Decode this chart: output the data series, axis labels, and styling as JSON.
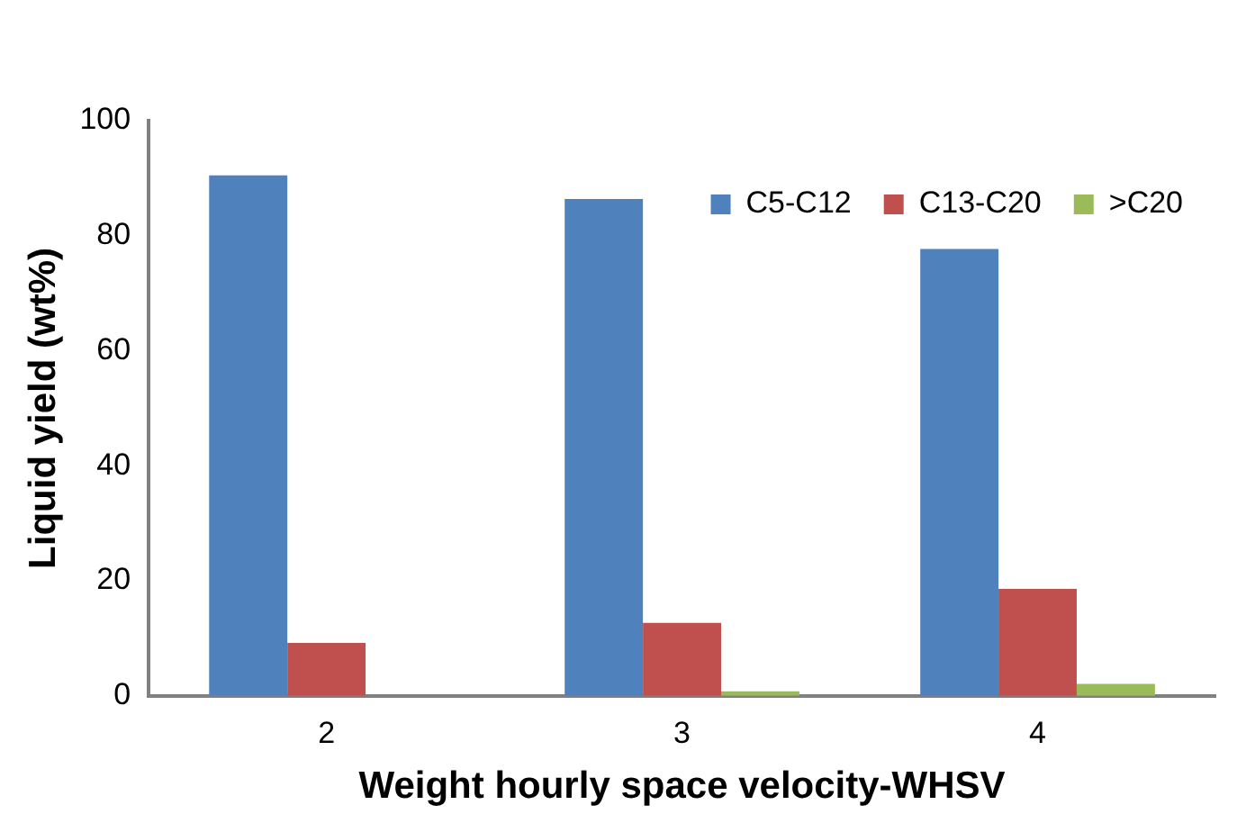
{
  "chart_data": {
    "type": "bar",
    "xlabel": "Weight hourly space velocity-WHSV",
    "ylabel": "Liquid yield (wt%)",
    "categories": [
      "2",
      "3",
      "4"
    ],
    "series": [
      {
        "name": "C5-C12",
        "color": "#4f81bd",
        "values": [
          90.5,
          86.4,
          77.7
        ]
      },
      {
        "name": "C13-C20",
        "color": "#c0504d",
        "values": [
          9.2,
          12.7,
          18.6
        ]
      },
      {
        "name": ">C20",
        "color": "#9bbb59",
        "values": [
          0,
          0.8,
          2.1
        ]
      }
    ],
    "ylim": [
      0,
      100
    ],
    "yticks": [
      0,
      20,
      40,
      60,
      80,
      100
    ],
    "grid": false,
    "legend": "top right"
  }
}
